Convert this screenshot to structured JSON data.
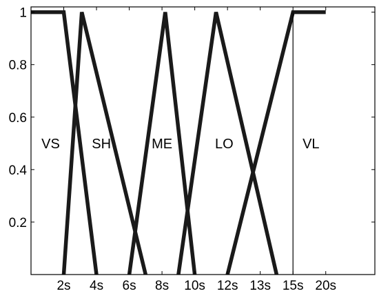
{
  "chart_data": {
    "type": "line",
    "title": "",
    "xlabel": "",
    "ylabel": "",
    "ylim": [
      0,
      1.02
    ],
    "grid": false,
    "x_ticks": [
      {
        "pos": 2,
        "label": "2s"
      },
      {
        "pos": 4,
        "label": "4s"
      },
      {
        "pos": 6,
        "label": "6s"
      },
      {
        "pos": 8,
        "label": "8s"
      },
      {
        "pos": 10,
        "label": "10s"
      },
      {
        "pos": 12,
        "label": "12s"
      },
      {
        "pos": 14,
        "label": "13s"
      },
      {
        "pos": 16,
        "label": "15s"
      },
      {
        "pos": 18,
        "label": "20s"
      }
    ],
    "y_ticks": [
      {
        "value": 0.2,
        "label": "0.2"
      },
      {
        "value": 0.4,
        "label": "0.4"
      },
      {
        "value": 0.6,
        "label": "0.6"
      },
      {
        "value": 0.8,
        "label": "0.8"
      },
      {
        "value": 1,
        "label": "1"
      }
    ],
    "series": [
      {
        "name": "VS",
        "x": [
          0,
          2,
          4
        ],
        "y": [
          1,
          1,
          0
        ]
      },
      {
        "name": "SH",
        "x": [
          2,
          3.1,
          7
        ],
        "y": [
          0,
          1,
          0
        ]
      },
      {
        "name": "ME",
        "x": [
          6,
          8.2,
          10
        ],
        "y": [
          0,
          1,
          0
        ]
      },
      {
        "name": "LO",
        "x": [
          9,
          11.3,
          15
        ],
        "y": [
          0,
          1,
          0
        ]
      },
      {
        "name": "VL",
        "x": [
          12,
          16,
          18
        ],
        "y": [
          0,
          1,
          1
        ]
      }
    ],
    "set_labels": [
      {
        "text": "VS",
        "x": 1.2,
        "y": 0.5
      },
      {
        "text": "SH",
        "x": 4.3,
        "y": 0.5
      },
      {
        "text": "ME",
        "x": 8.0,
        "y": 0.5
      },
      {
        "text": "LO",
        "x": 11.8,
        "y": 0.5
      },
      {
        "text": "VL",
        "x": 17.1,
        "y": 0.5
      }
    ],
    "vertical_line_x": 16
  }
}
